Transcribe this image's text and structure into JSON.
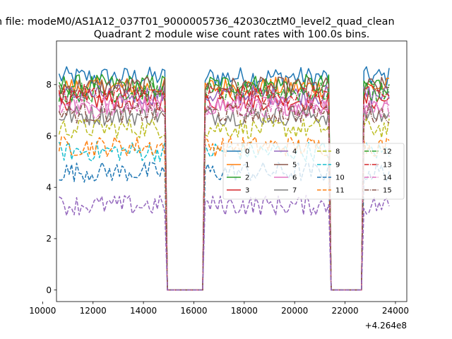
{
  "figure": {
    "suptitle": "n file: modeM0/AS1A12_037T01_9000005736_42030cztM0_level2_quad_clean",
    "offset_label": "+4.264e8"
  },
  "chart_data": {
    "type": "line",
    "title": "Quadrant 2 module wise count rates with 100.0s bins.",
    "xlabel": "",
    "ylabel": "",
    "x_offset": 426400000,
    "xlim": [
      10550,
      24450
    ],
    "ylim": [
      -0.45,
      9.7
    ],
    "x_ticks": [
      10000,
      12000,
      14000,
      16000,
      18000,
      20000,
      22000,
      24000
    ],
    "y_ticks": [
      0,
      2,
      4,
      6,
      8
    ],
    "grid": false,
    "legend": {
      "placement": "center-right",
      "columns": 4
    },
    "segments": [
      {
        "t_start": 10650,
        "t_end": 14850,
        "state": "on"
      },
      {
        "t_start": 14950,
        "t_end": 16350,
        "state": "off"
      },
      {
        "t_start": 16450,
        "t_end": 21350,
        "state": "on"
      },
      {
        "t_start": 21450,
        "t_end": 22650,
        "state": "off"
      },
      {
        "t_start": 22750,
        "t_end": 23750,
        "state": "on"
      }
    ],
    "series": [
      {
        "name": "0",
        "color": "#1f77b4",
        "style": "solid",
        "level": 8.3
      },
      {
        "name": "1",
        "color": "#ff7f0e",
        "style": "solid",
        "level": 7.9
      },
      {
        "name": "2",
        "color": "#2ca02c",
        "style": "solid",
        "level": 8.0
      },
      {
        "name": "3",
        "color": "#d62728",
        "style": "solid",
        "level": 7.4
      },
      {
        "name": "4",
        "color": "#9467bd",
        "style": "solid",
        "level": 7.6
      },
      {
        "name": "5",
        "color": "#8c564b",
        "style": "solid",
        "level": 7.9
      },
      {
        "name": "6",
        "color": "#e377c2",
        "style": "solid",
        "level": 7.2
      },
      {
        "name": "7",
        "color": "#7f7f7f",
        "style": "solid",
        "level": 6.8
      },
      {
        "name": "8",
        "color": "#bcbd22",
        "style": "dashed",
        "level": 6.3
      },
      {
        "name": "9",
        "color": "#17becf",
        "style": "dashed",
        "level": 5.4
      },
      {
        "name": "10",
        "color": "#1f77b4",
        "style": "dashed",
        "level": 4.6
      },
      {
        "name": "11",
        "color": "#ff7f0e",
        "style": "dashed",
        "level": 5.6
      },
      {
        "name": "12",
        "color": "#2ca02c",
        "style": "dashdot",
        "level": 7.7
      },
      {
        "name": "13",
        "color": "#d62728",
        "style": "dashdot",
        "level": 7.6
      },
      {
        "name": "14",
        "color": "#e377c2",
        "style": "dashdot",
        "level": 7.1
      },
      {
        "name": "15",
        "color": "#8c564b",
        "style": "dashdot",
        "level": 6.9
      }
    ],
    "extra_series_style": {
      "color": "#9467bd",
      "style": "dashed",
      "level": 3.3
    }
  }
}
